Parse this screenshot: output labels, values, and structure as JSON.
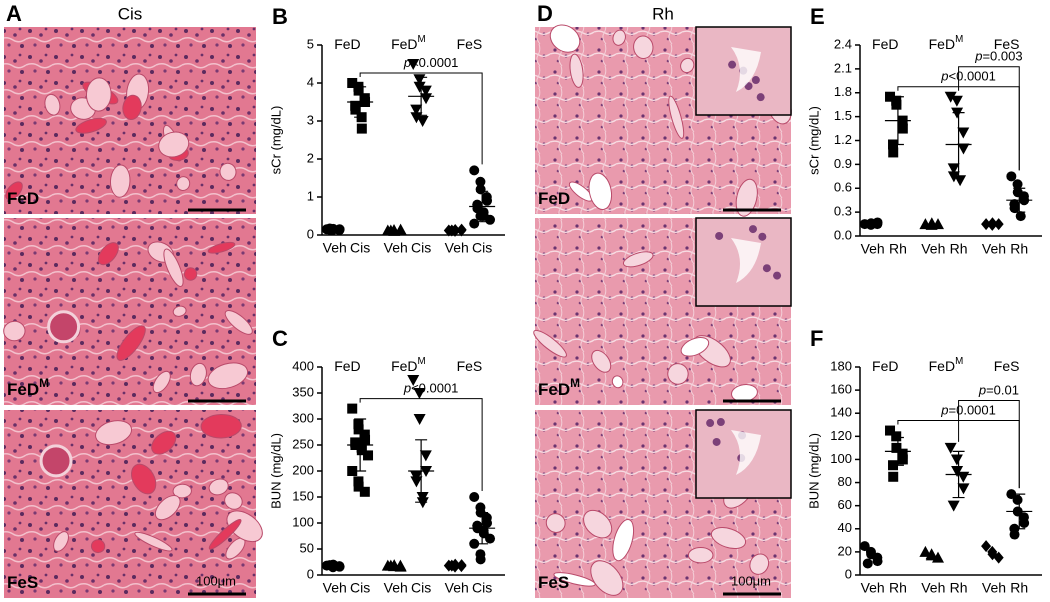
{
  "images": [
    {
      "panel": "A",
      "title": "Cis",
      "labels": [
        {
          "text": "FeD"
        },
        {
          "text": "FeD",
          "sup": "M"
        },
        {
          "text": "FeS"
        }
      ],
      "scale_bar": "100μm"
    },
    {
      "panel": "D",
      "title": "Rh",
      "labels": [
        {
          "text": "FeD"
        },
        {
          "text": "FeD",
          "sup": "M"
        },
        {
          "text": "FeS"
        }
      ],
      "scale_bar": "100μm"
    }
  ],
  "chart_data": [
    {
      "type": "dot",
      "panel": "B",
      "ylabel": "sCr (mg/dL)",
      "groups": [
        {
          "text": "FeD"
        },
        {
          "text": "FeD",
          "sup": "M"
        },
        {
          "text": "FeS"
        }
      ],
      "categories": [
        "Veh",
        "Cis",
        "Veh",
        "Cis",
        "Veh",
        "Cis"
      ],
      "markers": [
        "circle",
        "square",
        "triangle",
        "triangle-down",
        "diamond",
        "circle"
      ],
      "points": [
        [
          0.15,
          0.14,
          0.16,
          0.13,
          0.15,
          0.17,
          0.14
        ],
        [
          4.0,
          3.9,
          3.8,
          3.6,
          3.5,
          3.4,
          3.3,
          3.1,
          2.8
        ],
        [
          0.12,
          0.13,
          0.11,
          0.12,
          0.14,
          0.12
        ],
        [
          4.5,
          4.1,
          3.9,
          3.8,
          3.6,
          3.3,
          3.1,
          3.0
        ],
        [
          0.12,
          0.11,
          0.13,
          0.12,
          0.14,
          0.12
        ],
        [
          1.7,
          1.4,
          1.2,
          1.0,
          0.9,
          0.8,
          0.7,
          0.6,
          0.5,
          0.4,
          0.3,
          0.5
        ]
      ],
      "means": [
        null,
        3.5,
        null,
        3.65,
        null,
        0.75
      ],
      "errors": [
        null,
        0.4,
        null,
        0.5,
        null,
        0.4
      ],
      "ylim": [
        0,
        5
      ],
      "yticks": [
        0,
        1,
        2,
        3,
        4,
        5
      ],
      "annotations": [
        {
          "label": "p<0.0001",
          "from": 1,
          "to": 5
        }
      ]
    },
    {
      "type": "dot",
      "panel": "C",
      "ylabel": "BUN (mg/dL)",
      "groups": [
        {
          "text": "FeD"
        },
        {
          "text": "FeD",
          "sup": "M"
        },
        {
          "text": "FeS"
        }
      ],
      "categories": [
        "Veh",
        "Cis",
        "Veh",
        "Cis",
        "Veh",
        "Cis"
      ],
      "markers": [
        "circle",
        "square",
        "triangle",
        "triangle-down",
        "diamond",
        "circle"
      ],
      "points": [
        [
          18,
          15,
          20,
          17,
          16,
          19
        ],
        [
          320,
          290,
          280,
          270,
          260,
          255,
          250,
          245,
          240,
          230,
          200,
          180,
          170,
          160
        ],
        [
          18,
          17,
          19,
          18,
          16,
          18
        ],
        [
          375,
          350,
          300,
          230,
          200,
          190,
          180,
          150,
          140
        ],
        [
          18,
          16,
          20,
          17,
          19,
          18
        ],
        [
          150,
          130,
          120,
          110,
          100,
          95,
          90,
          85,
          80,
          70,
          60,
          40,
          30
        ]
      ],
      "means": [
        null,
        250,
        null,
        200,
        null,
        90
      ],
      "errors": [
        null,
        50,
        null,
        60,
        null,
        30
      ],
      "ylim": [
        0,
        400
      ],
      "yticks": [
        0,
        50,
        100,
        150,
        200,
        250,
        300,
        350,
        400
      ],
      "annotations": [
        {
          "label": "p<0.0001",
          "from": 1,
          "to": 5
        }
      ]
    },
    {
      "type": "dot",
      "panel": "E",
      "ylabel": "sCr (mg/dL)",
      "groups": [
        {
          "text": "FeD"
        },
        {
          "text": "FeD",
          "sup": "M"
        },
        {
          "text": "FeS"
        }
      ],
      "categories": [
        "Veh",
        "Rh",
        "Veh",
        "Rh",
        "Veh",
        "Rh"
      ],
      "markers": [
        "circle",
        "square",
        "triangle",
        "triangle-down",
        "diamond",
        "circle"
      ],
      "points": [
        [
          0.15,
          0.14,
          0.16,
          0.15,
          0.17
        ],
        [
          1.75,
          1.7,
          1.65,
          1.45,
          1.35,
          1.15,
          1.05
        ],
        [
          0.15,
          0.14,
          0.16,
          0.15
        ],
        [
          1.75,
          1.7,
          1.55,
          1.3,
          1.1,
          0.85,
          0.75,
          0.7
        ],
        [
          0.15,
          0.14,
          0.16,
          0.15
        ],
        [
          0.75,
          0.65,
          0.55,
          0.5,
          0.45,
          0.4,
          0.35,
          0.25
        ]
      ],
      "means": [
        null,
        1.45,
        null,
        1.15,
        null,
        0.45
      ],
      "errors": [
        null,
        0.3,
        null,
        0.4,
        null,
        0.15
      ],
      "ylim": [
        0,
        2.4
      ],
      "yticks": [
        {
          "value": 0,
          "label": "0.0"
        },
        0.3,
        0.6,
        0.9,
        1.2,
        1.5,
        1.8,
        2.1,
        2.4
      ],
      "annotations": [
        {
          "label": "p<0.0001",
          "from": 1,
          "to": 5
        },
        {
          "label": "p=0.003",
          "from": 3,
          "to": 5
        }
      ]
    },
    {
      "type": "dot",
      "panel": "F",
      "ylabel": "BUN (mg/dL)",
      "groups": [
        {
          "text": "FeD"
        },
        {
          "text": "FeD",
          "sup": "M"
        },
        {
          "text": "FeS"
        }
      ],
      "categories": [
        "Veh",
        "Rh",
        "Veh",
        "Rh",
        "Veh",
        "Rh"
      ],
      "markers": [
        "circle",
        "square",
        "triangle",
        "triangle-down",
        "diamond",
        "circle"
      ],
      "points": [
        [
          25,
          20,
          18,
          15,
          12,
          10
        ],
        [
          125,
          120,
          110,
          105,
          100,
          95,
          85
        ],
        [
          20,
          18,
          17,
          15
        ],
        [
          110,
          100,
          90,
          85,
          75,
          60
        ],
        [
          25,
          20,
          18,
          15
        ],
        [
          70,
          65,
          55,
          50,
          45,
          40,
          35
        ]
      ],
      "means": [
        null,
        107,
        null,
        87,
        null,
        55
      ],
      "errors": [
        null,
        12,
        null,
        20,
        null,
        15
      ],
      "ylim": [
        0,
        180
      ],
      "yticks": [
        0,
        20,
        40,
        60,
        80,
        100,
        120,
        140,
        160,
        180
      ],
      "annotations": [
        {
          "label": "p=0.0001",
          "from": 1,
          "to": 5
        },
        {
          "label": "p=0.01",
          "from": 3,
          "to": 5
        }
      ]
    }
  ]
}
